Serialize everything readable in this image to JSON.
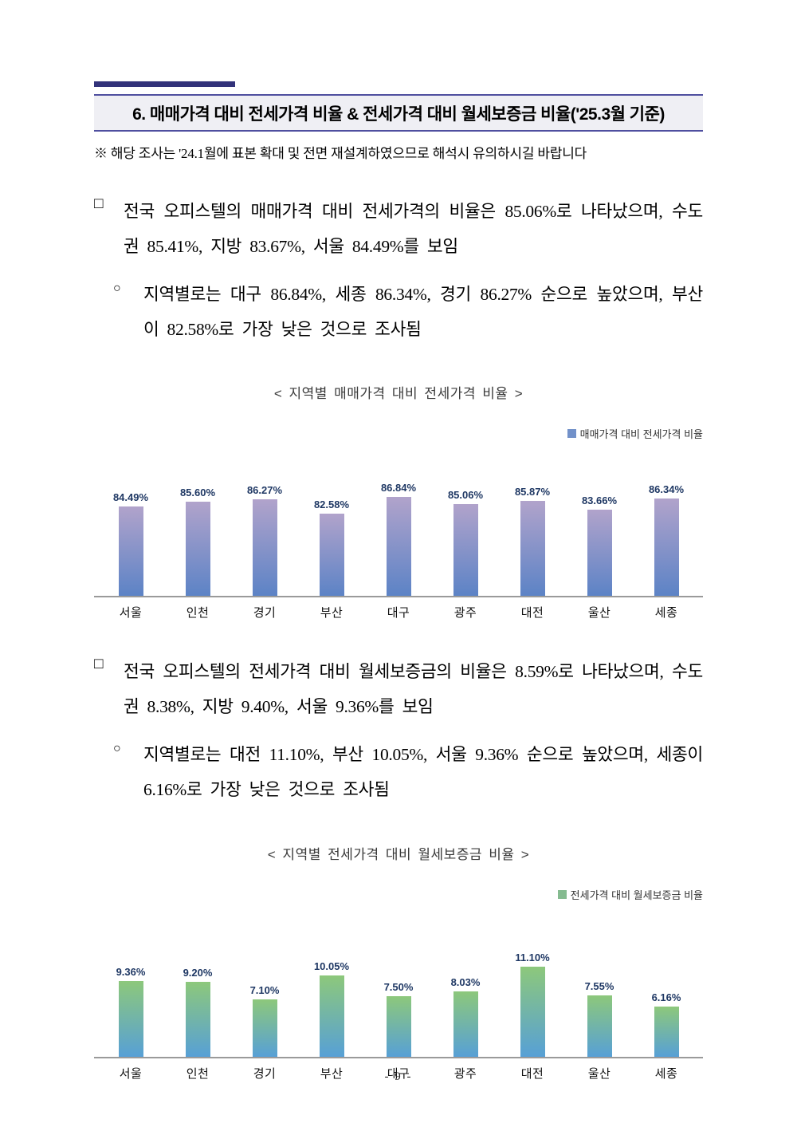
{
  "header": {
    "title": "6. 매매가격 대비 전세가격 비율 & 전세가격 대비 월세보증금 비율('25.3월 기준)"
  },
  "note": "※ 해당 조사는 '24.1월에 표본 확대 및 전면 재설계하였으므로 해석시 유의하시길 바랍니다",
  "sections": [
    {
      "bullet": "□",
      "text": "전국 오피스텔의 매매가격 대비 전세가격의 비율은 85.06%로 나타났으며, 수도권 85.41%, 지방 83.67%, 서울 84.49%를 보임",
      "sub_bullet": "○",
      "sub_text": "지역별로는 대구 86.84%, 세종 86.34%, 경기 86.27% 순으로 높았으며, 부산이 82.58%로 가장 낮은 것으로 조사됨"
    },
    {
      "bullet": "□",
      "text": "전국 오피스텔의 전세가격 대비 월세보증금의 비율은 8.59%로 나타났으며, 수도권 8.38%, 지방 9.40%, 서울 9.36%를 보임",
      "sub_bullet": "○",
      "sub_text": "지역별로는 대전 11.10%, 부산 10.05%, 서울 9.36% 순으로 높았으며, 세종이 6.16%로 가장 낮은 것으로 조사됨"
    }
  ],
  "chart_data": [
    {
      "type": "bar",
      "title": "< 지역별 매매가격 대비 전세가격 비율 >",
      "legend": "매매가격 대비 전세가격 비율",
      "legend_position": "top-right",
      "legend_color": "#7291c9",
      "categories": [
        "서울",
        "인천",
        "경기",
        "부산",
        "대구",
        "광주",
        "대전",
        "울산",
        "세종"
      ],
      "values": [
        84.49,
        85.6,
        86.27,
        82.58,
        86.84,
        85.06,
        85.87,
        83.66,
        86.34
      ],
      "value_labels": [
        "84.49%",
        "85.60%",
        "86.27%",
        "82.58%",
        "86.84%",
        "85.06%",
        "85.87%",
        "83.66%",
        "86.34%"
      ],
      "ylim": [
        62,
        88
      ],
      "grid": false,
      "value_label_color": "#1f3864",
      "bar_gradient": [
        "#b1a3cb",
        "#5c83c6"
      ]
    },
    {
      "type": "bar",
      "title": "< 지역별 전세가격 대비 월세보증금 비율 >",
      "legend": "전세가격 대비 월세보증금 비율",
      "legend_position": "top-right",
      "legend_color": "#85bb90",
      "categories": [
        "서울",
        "인천",
        "경기",
        "부산",
        "대구",
        "광주",
        "대전",
        "울산",
        "세종"
      ],
      "values": [
        9.36,
        9.2,
        7.1,
        10.05,
        7.5,
        8.03,
        11.1,
        7.55,
        6.16
      ],
      "value_labels": [
        "9.36%",
        "9.20%",
        "7.10%",
        "10.05%",
        "7.50%",
        "8.03%",
        "11.10%",
        "7.55%",
        "6.16%"
      ],
      "ylim": [
        0,
        12
      ],
      "grid": false,
      "value_label_color": "#1f3864",
      "bar_gradient": [
        "#8dc87b",
        "#57a0d6"
      ]
    }
  ],
  "footer": {
    "page_number": "- 9 -"
  }
}
